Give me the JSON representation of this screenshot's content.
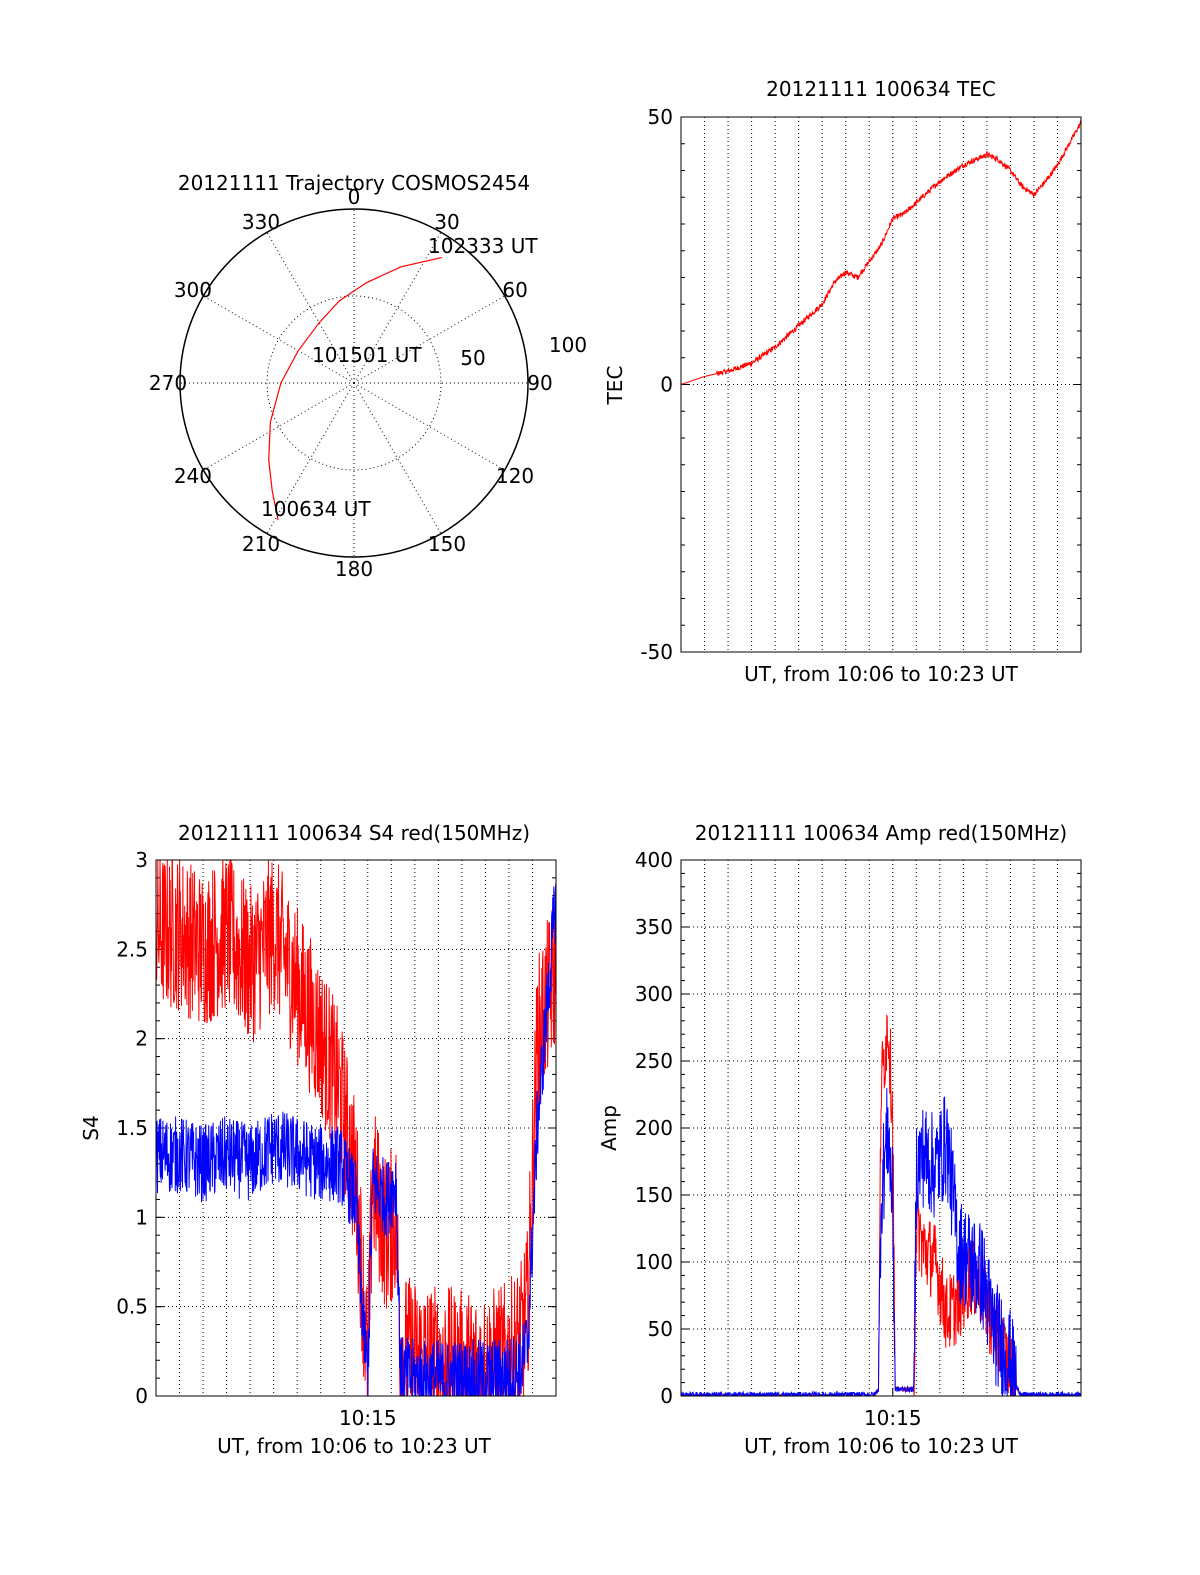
{
  "chart_data": [
    {
      "type": "polar",
      "title": "20121111 Trajectory COSMOS2454",
      "angle_labels": [
        "0",
        "30",
        "60",
        "90",
        "120",
        "150",
        "180",
        "210",
        "240",
        "270",
        "300",
        "330"
      ],
      "radius_labels": [
        "50",
        "100"
      ],
      "rmax": 100,
      "trajectory": {
        "color": "#ff0000",
        "points": [
          [
            209,
            90
          ],
          [
            217,
            78
          ],
          [
            228,
            66
          ],
          [
            245,
            53
          ],
          [
            270,
            42
          ],
          [
            300,
            37
          ],
          [
            330,
            40
          ],
          [
            350,
            48
          ],
          [
            7,
            58
          ],
          [
            22,
            72
          ],
          [
            35,
            88
          ]
        ]
      },
      "annotations": [
        {
          "text": "100634 UT",
          "angle": 209,
          "r": 90
        },
        {
          "text": "101501 UT",
          "angle": 320,
          "r": 12
        },
        {
          "text": "102333 UT",
          "angle": 35,
          "r": 88
        }
      ]
    },
    {
      "type": "line",
      "title": "20121111 100634 TEC",
      "xlabel": "UT, from 10:06 to 10:23 UT",
      "ylabel": "TEC",
      "xlim": [
        0,
        17
      ],
      "ylim": [
        -50,
        50
      ],
      "yticks": [
        -50,
        0,
        50
      ],
      "xtick_labels": [],
      "series": [
        {
          "color": "#ff0000",
          "noise": 0.5,
          "x": [
            0,
            1,
            2,
            3,
            4,
            5,
            6,
            6.5,
            7,
            7.5,
            8,
            8.5,
            9,
            9.5,
            10,
            11,
            12,
            13,
            13.5,
            14,
            14.5,
            15,
            15.5,
            16,
            17
          ],
          "y": [
            0,
            1.5,
            2.5,
            4,
            7,
            11,
            15,
            19,
            21,
            20,
            23,
            26,
            31,
            32,
            34,
            38,
            41,
            43,
            42,
            40,
            37,
            35.5,
            38,
            41,
            49
          ]
        }
      ]
    },
    {
      "type": "line",
      "title": "20121111 100634 S4 red(150MHz)",
      "xlabel": "UT, from 10:06 to 10:23 UT",
      "ylabel": "S4",
      "xlim": [
        0,
        17
      ],
      "ylim": [
        0,
        3
      ],
      "yticks": [
        0,
        0.5,
        1,
        1.5,
        2,
        2.5,
        3
      ],
      "xtick_labels": [
        {
          "x": 9,
          "label": "10:15"
        }
      ],
      "series": [
        {
          "color": "#ff0000",
          "noise": 0.45,
          "clip": true,
          "x": [
            0,
            1,
            2,
            3,
            4,
            5,
            6,
            7,
            7.8,
            8.5,
            8.7,
            9,
            9.2,
            9.8,
            10.2,
            10.4,
            11,
            12,
            13,
            14,
            15,
            15.5,
            15.8,
            16.2,
            17
          ],
          "y": [
            2.6,
            2.6,
            2.5,
            2.6,
            2.4,
            2.6,
            2.3,
            2.0,
            1.7,
            1.2,
            0.8,
            0.15,
            1.2,
            0.9,
            1.0,
            0.25,
            0.22,
            0.18,
            0.15,
            0.15,
            0.2,
            0.3,
            0.5,
            2.0,
            2.4
          ]
        },
        {
          "color": "#0000ff",
          "noise": 0.22,
          "clip": true,
          "x": [
            0,
            1,
            2,
            3,
            4,
            5,
            6,
            7,
            7.8,
            8.5,
            8.7,
            9,
            9.2,
            9.8,
            10.2,
            10.4,
            11,
            12,
            13,
            14,
            15,
            15.5,
            15.8,
            16.2,
            17
          ],
          "y": [
            1.35,
            1.35,
            1.3,
            1.35,
            1.3,
            1.4,
            1.35,
            1.3,
            1.3,
            1.1,
            0.6,
            0.1,
            1.2,
            1.1,
            1.2,
            0.12,
            0.1,
            0.1,
            0.1,
            0.1,
            0.12,
            0.15,
            0.3,
            1.5,
            2.8
          ]
        }
      ]
    },
    {
      "type": "line",
      "title": "20121111 100634 Amp red(150MHz)",
      "xlabel": "UT, from 10:06 to 10:23 UT",
      "ylabel": "Amp",
      "xlim": [
        0,
        17
      ],
      "ylim": [
        0,
        400
      ],
      "yticks": [
        0,
        50,
        100,
        150,
        200,
        250,
        300,
        350,
        400
      ],
      "xtick_labels": [
        {
          "x": 9,
          "label": "10:15"
        }
      ],
      "series": [
        {
          "color": "#ff0000",
          "noise": 30,
          "x": [
            0,
            8.2,
            8.4,
            8.5,
            8.8,
            9.0,
            9.1,
            9.9,
            10.0,
            10.3,
            10.8,
            11.3,
            11.8,
            12.3,
            12.8,
            13.3,
            14.0,
            14.3,
            14.5,
            17
          ],
          "y": [
            0,
            0,
            5,
            230,
            280,
            210,
            5,
            5,
            130,
            110,
            100,
            60,
            70,
            90,
            80,
            50,
            20,
            5,
            0,
            0
          ]
        },
        {
          "color": "#0000ff",
          "noise": 40,
          "x": [
            0,
            8.2,
            8.4,
            8.5,
            8.8,
            9.0,
            9.1,
            9.9,
            10.0,
            10.3,
            10.8,
            11.3,
            11.8,
            12.3,
            12.8,
            13.3,
            14.0,
            14.3,
            14.5,
            17
          ],
          "y": [
            1,
            1,
            5,
            150,
            200,
            140,
            5,
            5,
            170,
            180,
            170,
            190,
            110,
            100,
            90,
            50,
            25,
            5,
            1,
            1
          ]
        }
      ]
    }
  ]
}
